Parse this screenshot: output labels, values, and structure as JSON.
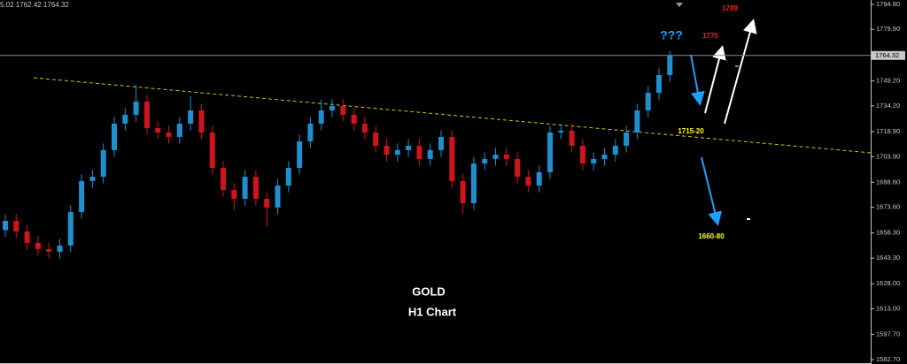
{
  "chart_data": {
    "type": "candlestick",
    "header": "5.02 1762.42 1764.32",
    "title": "GOLD",
    "subtitle": "H1 Chart",
    "up_color": "#1f8fd0",
    "down_color": "#d0141e",
    "open": [
      1660.0,
      1665.5,
      1659.2,
      1652.4,
      1648.7,
      1647.1,
      1650.8,
      1670.8,
      1689.3,
      1691.9,
      1707.8,
      1723.6,
      1728.9,
      1736.8,
      1720.9,
      1718.3,
      1715.7,
      1723.6,
      1731.5,
      1718.3,
      1697.2,
      1684.0,
      1678.7,
      1691.9,
      1678.7,
      1673.5,
      1686.6,
      1697.2,
      1713.0,
      1723.6,
      1731.5,
      1734.1,
      1728.9,
      1723.6,
      1718.3,
      1710.4,
      1705.1,
      1707.8,
      1710.4,
      1702.5,
      1707.8,
      1715.7,
      1689.3,
      1676.1,
      1699.8,
      1702.5,
      1705.1,
      1702.5,
      1691.9,
      1686.6,
      1694.6,
      1718.3,
      1719.4,
      1710.4,
      1699.8,
      1702.5,
      1705.1,
      1710.4,
      1718.3,
      1731.5,
      1742.0,
      1752.6
    ],
    "high": [
      1669.5,
      1669.5,
      1663.2,
      1656.4,
      1652.7,
      1654.8,
      1674.8,
      1693.3,
      1695.9,
      1711.8,
      1727.6,
      1732.9,
      1747.0,
      1740.8,
      1724.9,
      1722.3,
      1727.6,
      1740.0,
      1735.5,
      1722.3,
      1701.2,
      1688.0,
      1695.9,
      1695.9,
      1682.7,
      1690.6,
      1701.2,
      1717.0,
      1727.6,
      1738.0,
      1738.1,
      1738.1,
      1732.9,
      1727.6,
      1722.3,
      1714.4,
      1711.8,
      1714.4,
      1714.4,
      1711.8,
      1719.7,
      1719.7,
      1693.3,
      1703.8,
      1706.5,
      1709.1,
      1709.1,
      1706.5,
      1695.9,
      1698.6,
      1722.3,
      1723.4,
      1723.4,
      1714.4,
      1706.5,
      1709.1,
      1714.4,
      1722.3,
      1735.5,
      1746.0,
      1756.6,
      1767.0
    ],
    "low": [
      1656.0,
      1655.2,
      1648.4,
      1644.7,
      1643.1,
      1643.1,
      1646.8,
      1666.8,
      1685.3,
      1687.9,
      1703.8,
      1719.6,
      1724.9,
      1716.9,
      1714.3,
      1711.7,
      1711.7,
      1719.6,
      1714.3,
      1693.2,
      1680.0,
      1672.0,
      1674.7,
      1674.7,
      1662.0,
      1669.5,
      1682.6,
      1693.2,
      1709.0,
      1719.6,
      1727.5,
      1724.9,
      1719.6,
      1714.3,
      1706.4,
      1701.1,
      1701.1,
      1703.8,
      1698.5,
      1698.5,
      1703.8,
      1685.3,
      1670.0,
      1672.1,
      1695.8,
      1698.5,
      1698.5,
      1687.9,
      1682.6,
      1682.6,
      1690.6,
      1714.3,
      1706.4,
      1695.8,
      1695.8,
      1698.5,
      1701.1,
      1706.4,
      1714.3,
      1727.5,
      1738.0,
      1748.6
    ],
    "close": [
      1665.5,
      1659.2,
      1652.4,
      1648.7,
      1647.1,
      1650.8,
      1670.8,
      1689.3,
      1691.9,
      1707.8,
      1723.6,
      1728.9,
      1736.8,
      1720.9,
      1718.3,
      1715.7,
      1723.6,
      1731.5,
      1718.3,
      1697.2,
      1684.0,
      1678.7,
      1691.9,
      1678.7,
      1673.5,
      1686.6,
      1697.2,
      1713.0,
      1723.6,
      1731.5,
      1734.1,
      1728.9,
      1723.6,
      1718.3,
      1710.4,
      1705.1,
      1707.8,
      1710.4,
      1702.5,
      1707.8,
      1715.7,
      1689.3,
      1676.1,
      1699.8,
      1702.5,
      1705.1,
      1702.5,
      1691.9,
      1686.6,
      1694.6,
      1718.3,
      1719.4,
      1710.4,
      1699.8,
      1702.5,
      1705.1,
      1710.4,
      1718.3,
      1731.5,
      1742.0,
      1752.6,
      1764.32
    ],
    "ylim": [
      1580.06,
      1797.44
    ],
    "yticks": [
      {
        "value": 1794.8,
        "label": "1794.80"
      },
      {
        "value": 1779.9,
        "label": "1779.90"
      },
      {
        "value": 1749.2,
        "label": "1749.20"
      },
      {
        "value": 1734.2,
        "label": "1734.20"
      },
      {
        "value": 1718.9,
        "label": "1718.90"
      },
      {
        "value": 1703.9,
        "label": "1703.90"
      },
      {
        "value": 1688.6,
        "label": "1688.60"
      },
      {
        "value": 1673.6,
        "label": "1673.60"
      },
      {
        "value": 1658.3,
        "label": "1658.30"
      },
      {
        "value": 1643.3,
        "label": "1643.30"
      },
      {
        "value": 1628.0,
        "label": "1628.00"
      },
      {
        "value": 1613.0,
        "label": "1613.00"
      },
      {
        "value": 1597.7,
        "label": "1597.70"
      },
      {
        "value": 1582.7,
        "label": "1582.70"
      }
    ],
    "annotations": [
      {
        "text": "???",
        "color": "#1ea0ff"
      },
      {
        "text": "1775",
        "color": "#ff1a1a"
      },
      {
        "text": "1789",
        "color": "#ff1a1a"
      },
      {
        "text": "1715-20",
        "color": "#ffff00"
      },
      {
        "text": "1660-80",
        "color": "#ffff00"
      }
    ]
  }
}
